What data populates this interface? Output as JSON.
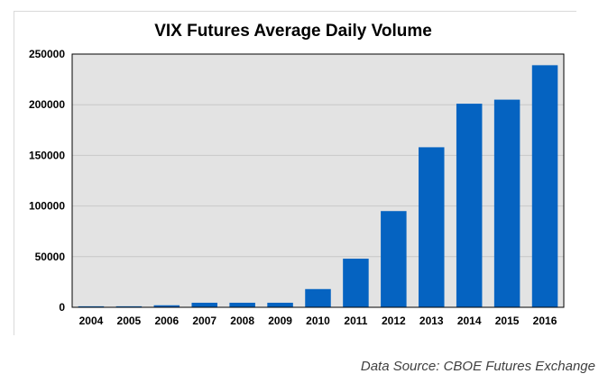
{
  "source_note": "Data Source: CBOE Futures Exchange",
  "colors": {
    "bar": "#0563c1",
    "plot_background": "#e3e3e3",
    "gridline": "#c8c8c8",
    "axis": "#000000",
    "text": "#000000"
  },
  "chart_data": {
    "type": "bar",
    "title": "VIX Futures Average Daily Volume",
    "xlabel": "",
    "ylabel": "",
    "categories": [
      "2004",
      "2005",
      "2006",
      "2007",
      "2008",
      "2009",
      "2010",
      "2011",
      "2012",
      "2013",
      "2014",
      "2015",
      "2016"
    ],
    "values": [
      1000,
      1000,
      2000,
      4500,
      4500,
      4500,
      18000,
      48000,
      95000,
      158000,
      201000,
      205000,
      239000
    ],
    "ylim": [
      0,
      250000
    ],
    "yticks": [
      "0",
      "50000",
      "100000",
      "150000",
      "200000",
      "250000"
    ],
    "ytick_values": [
      0,
      50000,
      100000,
      150000,
      200000,
      250000
    ],
    "grid": true,
    "legend": "none"
  }
}
